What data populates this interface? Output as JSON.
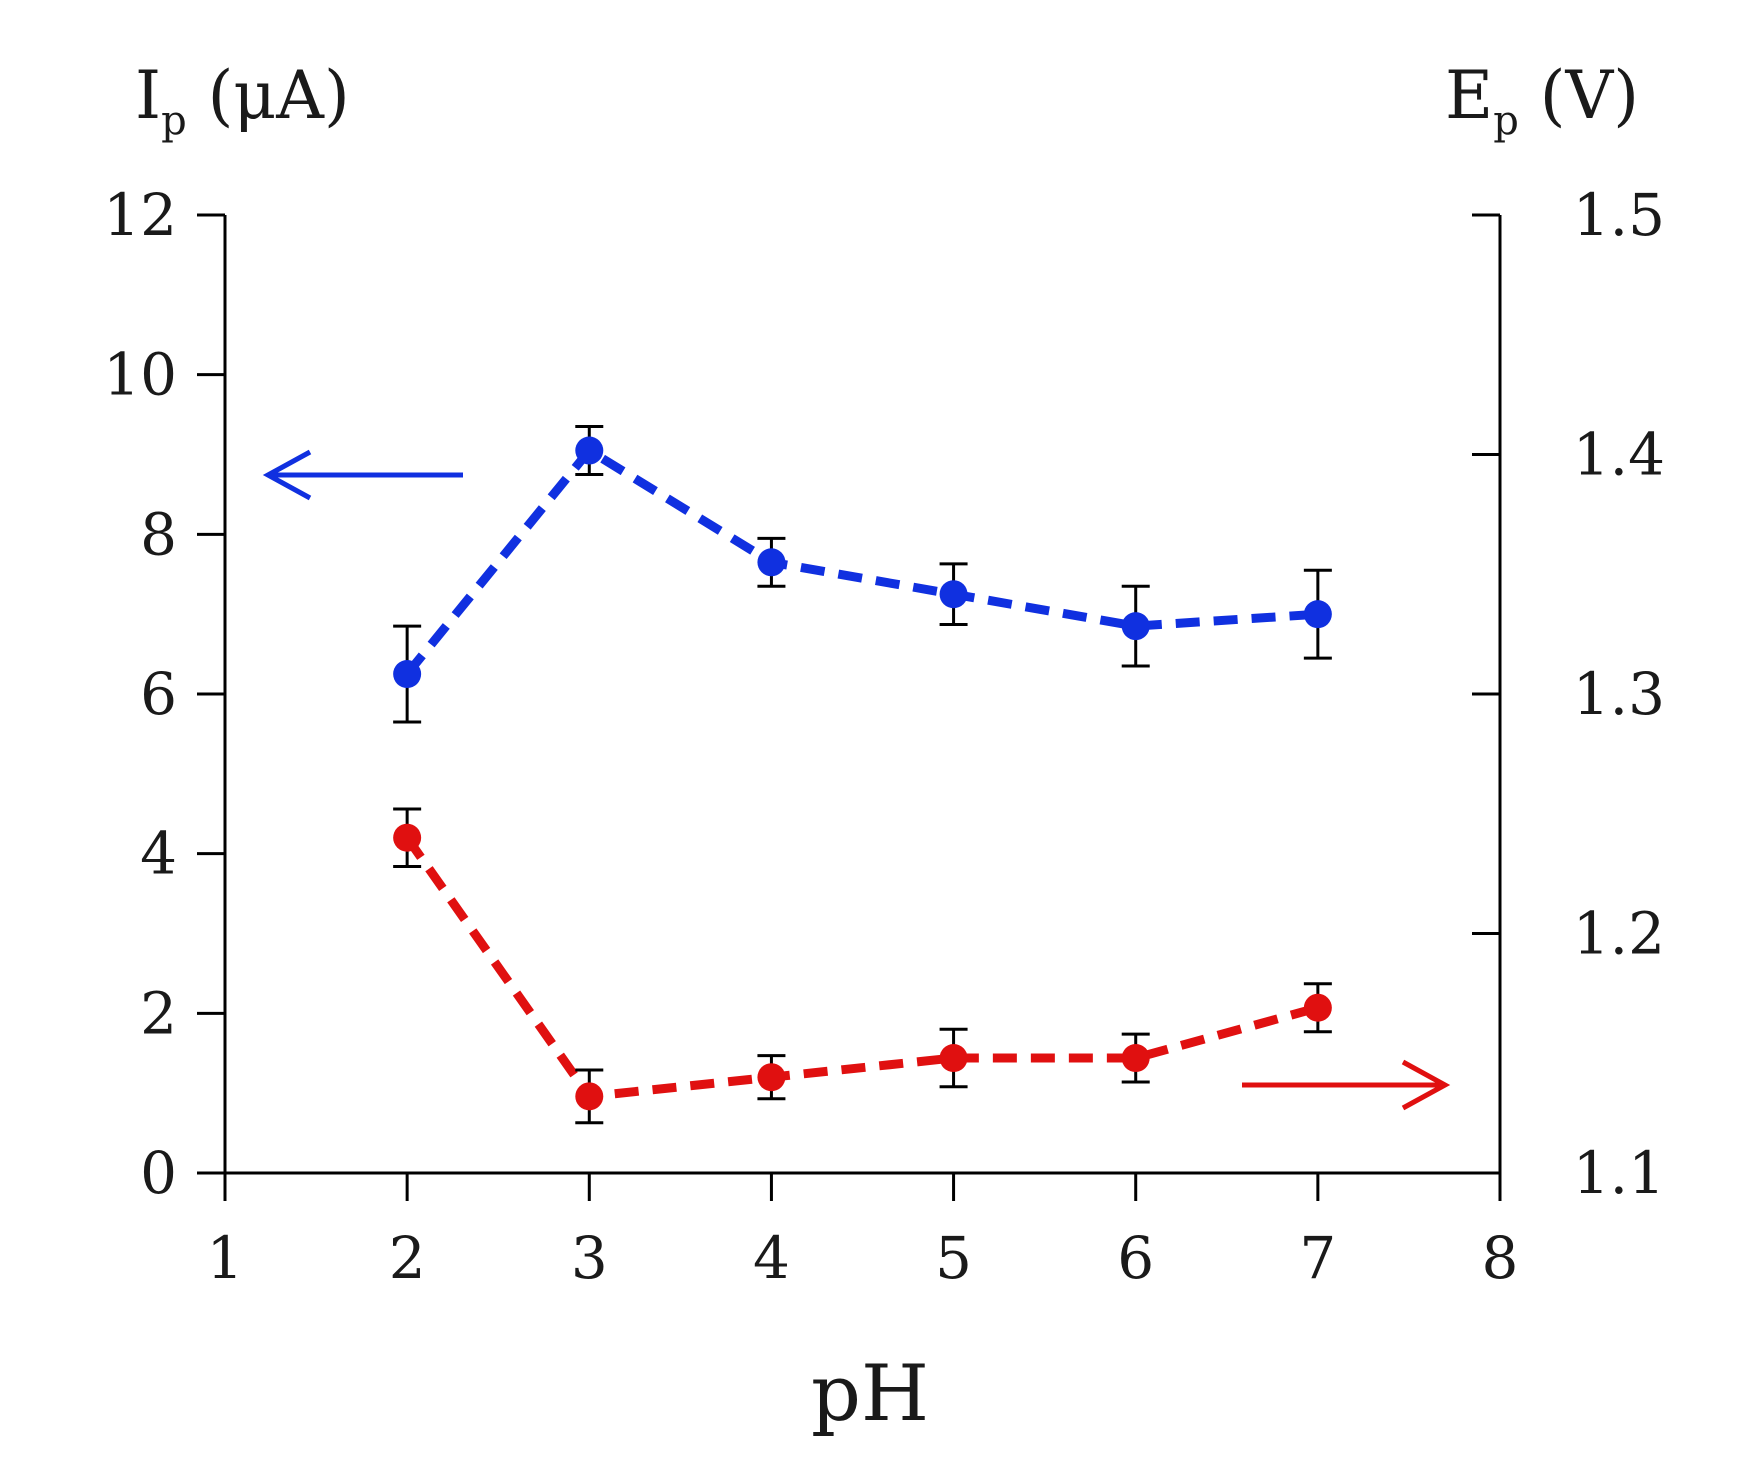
{
  "chart_data": {
    "type": "line",
    "title": "",
    "xlabel": "pH",
    "left_axis": {
      "label_main": "I",
      "label_sub": "p",
      "label_unit": " (μA)",
      "ylim": [
        0,
        12
      ],
      "ticks": [
        "0",
        "2",
        "4",
        "6",
        "8",
        "10",
        "12"
      ]
    },
    "right_axis": {
      "label_main": "E",
      "label_sub": "p",
      "label_unit": " (V)",
      "ylim": [
        1.1,
        1.5
      ],
      "ticks": [
        "1.1",
        "1.2",
        "1.3",
        "1.4",
        "1.5"
      ]
    },
    "xlim": [
      1,
      8
    ],
    "x_ticks": [
      "1",
      "2",
      "3",
      "4",
      "5",
      "6",
      "7",
      "8"
    ],
    "series": [
      {
        "name": "Ip",
        "axis": "left",
        "color": "#1030e0",
        "x": [
          2,
          3,
          4,
          5,
          6,
          7
        ],
        "values": [
          6.25,
          9.05,
          7.65,
          7.25,
          6.85,
          7.0
        ],
        "errors": [
          0.6,
          0.3,
          0.3,
          0.38,
          0.5,
          0.55
        ]
      },
      {
        "name": "Ep",
        "axis": "right",
        "color": "#e01010",
        "x": [
          2,
          3,
          4,
          5,
          6,
          7
        ],
        "values": [
          1.24,
          1.132,
          1.14,
          1.148,
          1.148,
          1.169
        ],
        "errors": [
          0.012,
          0.011,
          0.009,
          0.012,
          0.01,
          0.01
        ]
      }
    ],
    "annotations": [
      {
        "type": "arrow",
        "direction": "left",
        "color": "#1030e0",
        "points_to": "left axis"
      },
      {
        "type": "arrow",
        "direction": "right",
        "color": "#e01010",
        "points_to": "right axis"
      }
    ]
  }
}
